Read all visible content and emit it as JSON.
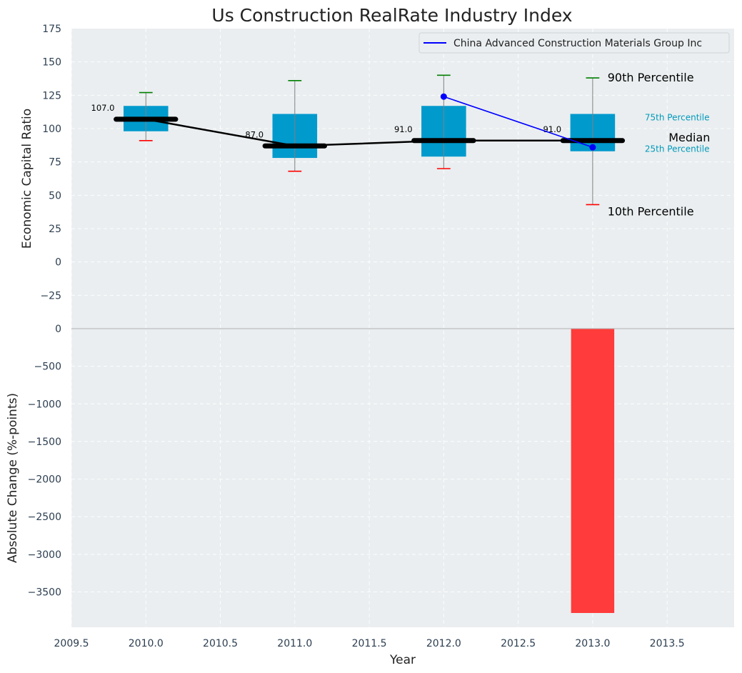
{
  "chart_data": {
    "title": "Us Construction RealRate Industry Index",
    "xlabel": "Year",
    "xlim": [
      2009.5,
      2013.95
    ],
    "x_ticks": [
      "2009.5",
      "2010.0",
      "2010.5",
      "2011.0",
      "2011.5",
      "2012.0",
      "2012.5",
      "2013.0",
      "2013.5"
    ],
    "colors": {
      "background": "#eaeef0",
      "box": "#009acd",
      "median": "#000000",
      "company": "#0000ff",
      "p90_cap": "#008000",
      "p10_cap": "#ff0000",
      "whisker": "#808080",
      "bar": "#ff3b3b",
      "percentile_text": "#0099bb"
    },
    "top_panel": {
      "type": "box",
      "ylabel": "Economic Capital Ratio",
      "ylim": [
        -50,
        175
      ],
      "y_ticks": [
        "175",
        "150",
        "125",
        "100",
        "75",
        "50",
        "25",
        "0",
        "−25"
      ],
      "boxes": [
        {
          "year": 2010,
          "p10": 91,
          "p25": 98,
          "median": 107,
          "p75": 117,
          "p90": 127,
          "median_label": "107.0"
        },
        {
          "year": 2011,
          "p10": 68,
          "p25": 78,
          "median": 87,
          "p75": 111,
          "p90": 136,
          "median_label": "87.0"
        },
        {
          "year": 2012,
          "p10": 70,
          "p25": 79,
          "median": 91,
          "p75": 117,
          "p90": 140,
          "median_label": "91.0"
        },
        {
          "year": 2013,
          "p10": 43,
          "p25": 83,
          "median": 91,
          "p75": 111,
          "p90": 138,
          "median_label": "91.0"
        }
      ],
      "company_series": {
        "name": "China Advanced Construction Materials Group Inc",
        "x": [
          2012,
          2013
        ],
        "y": [
          124,
          86
        ]
      },
      "annotations": {
        "p90": "90th Percentile",
        "p75": "75th Percentile",
        "median": "Median",
        "p25": "25th Percentile",
        "p10": "10th Percentile"
      }
    },
    "bottom_panel": {
      "type": "bar",
      "ylabel": "Absolute Change (%-points)",
      "ylim": [
        -3970,
        0
      ],
      "y_ticks": [
        "0",
        "−500",
        "−1000",
        "−1500",
        "−2000",
        "−2500",
        "−3000",
        "−3500"
      ],
      "bars": [
        {
          "year": 2013,
          "value": -3780
        }
      ]
    }
  }
}
